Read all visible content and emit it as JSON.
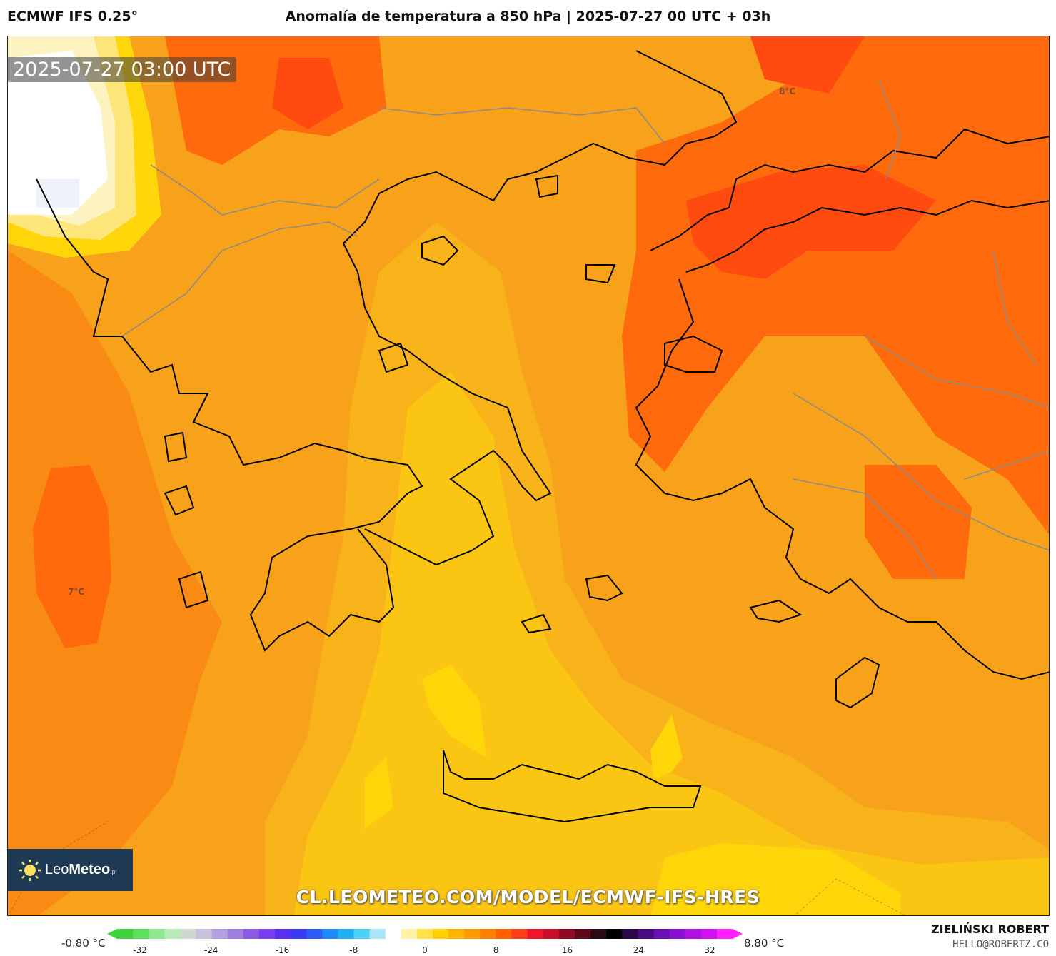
{
  "header": {
    "model": "ECMWF IFS 0.25°",
    "title": "Anomalía de temperatura a 850 hPa | 2025-07-27 00 UTC + 03h"
  },
  "map": {
    "timestamp": "2025-07-27 03:00 UTC",
    "labels": [
      {
        "id": "max-label",
        "text": "8°C"
      },
      {
        "id": "min-label",
        "text": "7°C"
      }
    ],
    "watermark": "CL.LEOMETEO.COM/MODEL/ECMWF-IFS-HRES",
    "logo": {
      "brand_light": "Leo",
      "brand_bold": "Meteo",
      "suffix": ".pl"
    }
  },
  "colorbar": {
    "min_label": "-0.80 °C",
    "max_label": "8.80 °C",
    "ticks": [
      "-32",
      "-24",
      "-16",
      "-8",
      "0",
      "8",
      "16",
      "24",
      "32"
    ],
    "colors": [
      "#3fd23f",
      "#5ee05e",
      "#8fe88f",
      "#b7eab7",
      "#cfd8cf",
      "#c9c0dc",
      "#b4a0dd",
      "#9d7fe0",
      "#8a5ce6",
      "#7b3df0",
      "#5a2ff0",
      "#3a3af5",
      "#2f5cf7",
      "#1f8af7",
      "#1fb0f5",
      "#4fd0f7",
      "#a9e6f5",
      "#ffffff",
      "#fff2a8",
      "#ffe24a",
      "#ffd000",
      "#ffb400",
      "#ff9a00",
      "#ff7f00",
      "#ff6000",
      "#ff3c1c",
      "#f0162a",
      "#c80e2a",
      "#8f0a24",
      "#5a0a1a",
      "#2a0a14",
      "#000000",
      "#2a0a46",
      "#4a0a80",
      "#6a10b0",
      "#8a10d0",
      "#b010e0",
      "#d010f0",
      "#ff20ff"
    ]
  },
  "footer": {
    "author": "ZIELIŃSKI ROBERT",
    "email": "HELLO@ROBERTZ.CO"
  },
  "palette": {
    "anom_7": "#f98a14",
    "anom_6": "#f7a21a",
    "anom_5": "#f9b31a",
    "anom_4": "#fbc514",
    "anom_3": "#ffd60a",
    "anom_8": "#ff6a0c",
    "anom_9": "#ff4a10",
    "cold": "#fdf3a0",
    "coast": "#000000",
    "border": "#8a8a8a"
  }
}
